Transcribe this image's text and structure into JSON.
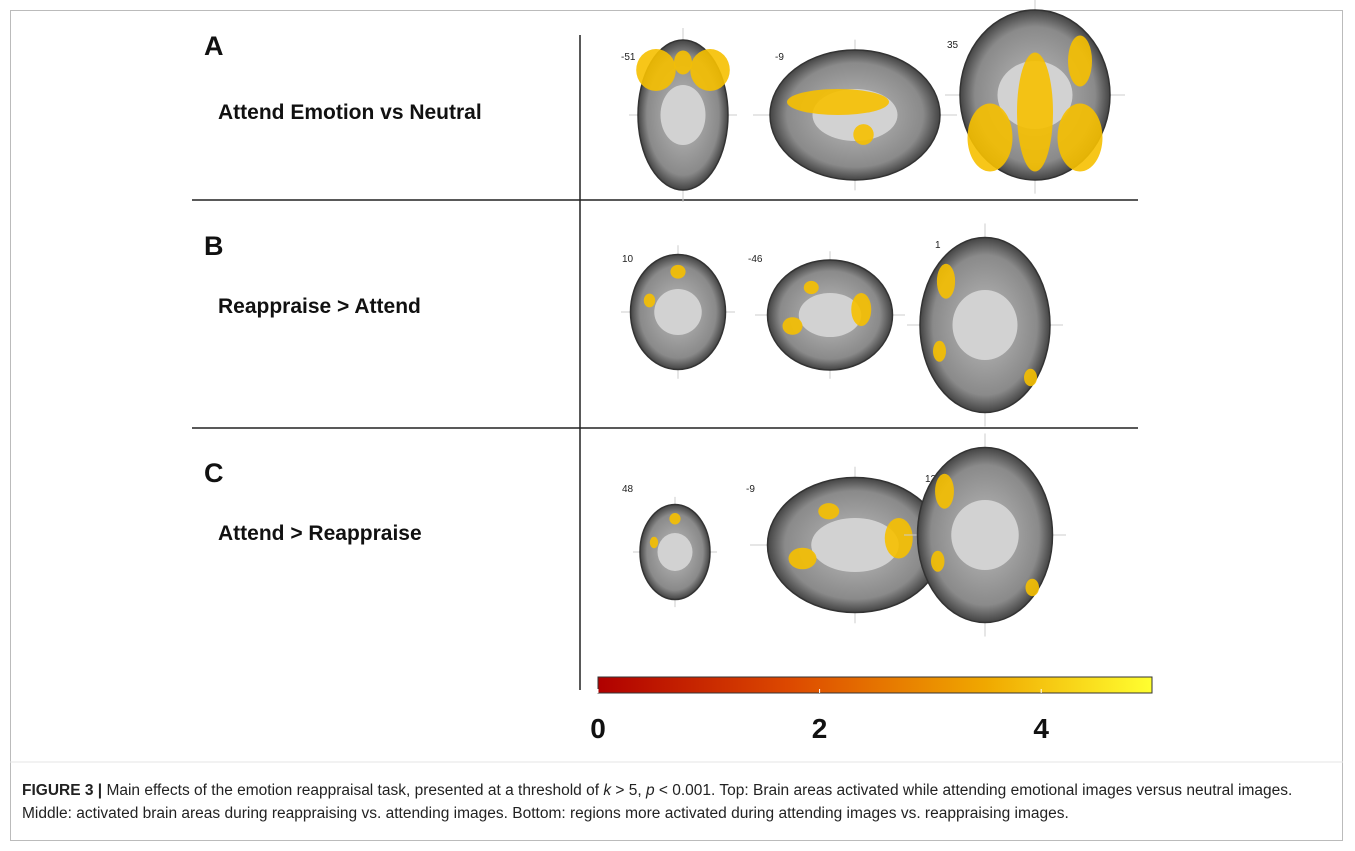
{
  "panels": [
    {
      "letter": "A",
      "label": "Attend Emotion vs Neutral",
      "slices": [
        -51,
        -9,
        35
      ]
    },
    {
      "letter": "B",
      "label": "Reappraise > Attend",
      "slices": [
        10,
        -46,
        1
      ]
    },
    {
      "letter": "C",
      "label": "Attend > Reappraise",
      "slices": [
        48,
        -9,
        12
      ]
    }
  ],
  "colorbar": {
    "lim": [
      0,
      5
    ],
    "ticks": [
      0,
      2,
      4
    ]
  },
  "caption": {
    "label": "FIGURE 3 |",
    "segments": [
      {
        "text": " Main effects of the emotion reappraisal task, presented at a threshold of "
      },
      {
        "text": "k",
        "italic": true
      },
      {
        "text": " > 5, "
      },
      {
        "text": "p",
        "italic": true
      },
      {
        "text": " < 0.001. Top: Brain areas activated while attending emotional images versus neutral images. Middle: activated brain areas during reappraising vs. attending images. Bottom: regions more activated during attending images vs. reappraising images."
      }
    ]
  }
}
